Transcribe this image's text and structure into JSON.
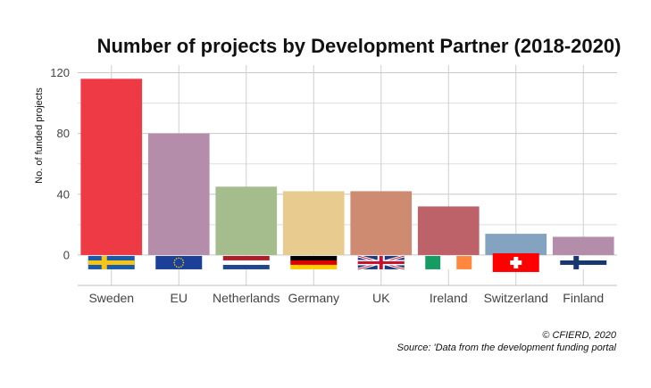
{
  "chart_data": {
    "type": "bar",
    "title": "Number of projects by Development Partner (2018-2020)",
    "ylabel": "No. of funded projects",
    "xlabel": "",
    "categories": [
      "Sweden",
      "EU",
      "Netherlands",
      "Germany",
      "UK",
      "Ireland",
      "Switzerland",
      "Finland"
    ],
    "values": [
      116,
      80,
      45,
      42,
      42,
      32,
      14,
      12
    ],
    "colors": [
      "#ee3a45",
      "#b48daa",
      "#a5bd8c",
      "#e8cc8f",
      "#cf8a72",
      "#be626a",
      "#84a3c0",
      "#b48daa"
    ],
    "ylim": [
      -20,
      125
    ],
    "yticks": [
      0,
      40,
      80,
      120
    ],
    "grid": true,
    "legend": "none",
    "flags": [
      "sweden-flag-icon",
      "eu-flag-icon",
      "netherlands-flag-icon",
      "germany-flag-icon",
      "uk-flag-icon",
      "ireland-flag-icon",
      "switzerland-flag-icon",
      "finland-flag-icon"
    ]
  },
  "caption": {
    "copyright": "© CFIERD, 2020",
    "source": "Source: 'Data from the development funding portal"
  }
}
